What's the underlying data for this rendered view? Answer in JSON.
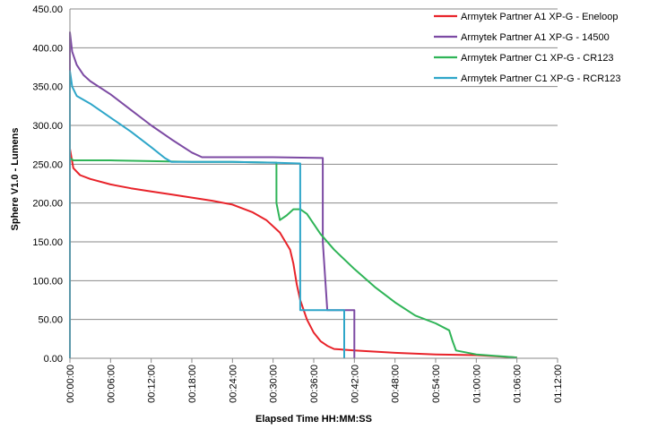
{
  "chart_data": {
    "type": "line",
    "title": "",
    "xlabel": "Elapsed Time HH:MM:SS",
    "ylabel": "Sphere V1.0 - Lumens",
    "xlim": [
      "00:00:00",
      "01:12:00"
    ],
    "ylim": [
      0,
      450
    ],
    "x_ticks": [
      "00:00:00",
      "00:06:00",
      "00:12:00",
      "00:18:00",
      "00:24:00",
      "00:30:00",
      "00:36:00",
      "00:42:00",
      "00:48:00",
      "00:54:00",
      "01:00:00",
      "01:06:00",
      "01:12:00"
    ],
    "y_ticks": [
      "0.00",
      "50.00",
      "100.00",
      "150.00",
      "200.00",
      "250.00",
      "300.00",
      "350.00",
      "400.00",
      "450.00"
    ],
    "grid": "horizontal",
    "legend_position": "top-right",
    "series": [
      {
        "name": "Armytek Partner A1 XP-G - Eneloop",
        "color": "#e8232a",
        "points": [
          [
            "00:00:00",
            0
          ],
          [
            "00:00:00",
            270
          ],
          [
            "00:00:30",
            245
          ],
          [
            "00:01:30",
            236
          ],
          [
            "00:03:00",
            231
          ],
          [
            "00:06:00",
            224
          ],
          [
            "00:09:00",
            219
          ],
          [
            "00:12:00",
            215
          ],
          [
            "00:15:00",
            211
          ],
          [
            "00:18:00",
            207
          ],
          [
            "00:21:00",
            203
          ],
          [
            "00:24:00",
            198
          ],
          [
            "00:27:00",
            188
          ],
          [
            "00:29:00",
            178
          ],
          [
            "00:31:00",
            162
          ],
          [
            "00:32:30",
            140
          ],
          [
            "00:33:00",
            122
          ],
          [
            "00:33:30",
            95
          ],
          [
            "00:34:00",
            75
          ],
          [
            "00:35:00",
            50
          ],
          [
            "00:36:00",
            33
          ],
          [
            "00:37:00",
            22
          ],
          [
            "00:38:00",
            16
          ],
          [
            "00:39:00",
            12
          ],
          [
            "00:42:00",
            10
          ],
          [
            "00:48:00",
            7
          ],
          [
            "00:54:00",
            5
          ],
          [
            "01:00:00",
            4
          ],
          [
            "01:06:00",
            1
          ]
        ]
      },
      {
        "name": "Armytek Partner A1 XP-G - 14500",
        "color": "#7c4aa3",
        "points": [
          [
            "00:00:00",
            0
          ],
          [
            "00:00:00",
            420
          ],
          [
            "00:00:20",
            395
          ],
          [
            "00:01:00",
            378
          ],
          [
            "00:02:00",
            365
          ],
          [
            "00:03:00",
            357
          ],
          [
            "00:06:00",
            340
          ],
          [
            "00:09:00",
            320
          ],
          [
            "00:12:00",
            300
          ],
          [
            "00:15:00",
            282
          ],
          [
            "00:18:00",
            265
          ],
          [
            "00:19:30",
            259
          ],
          [
            "00:30:00",
            259
          ],
          [
            "00:37:20",
            258
          ],
          [
            "00:37:20",
            150
          ],
          [
            "00:38:00",
            62
          ],
          [
            "00:42:00",
            62
          ],
          [
            "00:42:00",
            0
          ]
        ]
      },
      {
        "name": "Armytek Partner C1 XP-G - CR123",
        "color": "#2fb457",
        "points": [
          [
            "00:00:00",
            0
          ],
          [
            "00:00:00",
            258
          ],
          [
            "00:00:30",
            255
          ],
          [
            "00:06:00",
            255
          ],
          [
            "00:12:00",
            254
          ],
          [
            "00:18:00",
            253
          ],
          [
            "00:24:00",
            253
          ],
          [
            "00:30:30",
            252
          ],
          [
            "00:30:30",
            200
          ],
          [
            "00:31:00",
            178
          ],
          [
            "00:32:00",
            184
          ],
          [
            "00:33:00",
            192
          ],
          [
            "00:34:00",
            192
          ],
          [
            "00:35:00",
            186
          ],
          [
            "00:36:00",
            173
          ],
          [
            "00:37:00",
            160
          ],
          [
            "00:39:00",
            140
          ],
          [
            "00:42:00",
            115
          ],
          [
            "00:45:00",
            92
          ],
          [
            "00:48:00",
            72
          ],
          [
            "00:51:00",
            55
          ],
          [
            "00:54:00",
            45
          ],
          [
            "00:56:00",
            36
          ],
          [
            "00:56:30",
            22
          ],
          [
            "00:57:00",
            10
          ],
          [
            "01:00:00",
            5
          ],
          [
            "01:06:00",
            1
          ]
        ]
      },
      {
        "name": "Armytek Partner C1 XP-G - RCR123",
        "color": "#2ea6c9",
        "points": [
          [
            "00:00:00",
            0
          ],
          [
            "00:00:00",
            370
          ],
          [
            "00:00:20",
            350
          ],
          [
            "00:01:00",
            338
          ],
          [
            "00:03:00",
            328
          ],
          [
            "00:06:00",
            310
          ],
          [
            "00:09:00",
            292
          ],
          [
            "00:12:00",
            272
          ],
          [
            "00:14:00",
            258
          ],
          [
            "00:15:00",
            253
          ],
          [
            "00:24:00",
            253
          ],
          [
            "00:30:00",
            252
          ],
          [
            "00:34:00",
            251
          ],
          [
            "00:34:00",
            62
          ],
          [
            "00:40:30",
            62
          ],
          [
            "00:40:30",
            0
          ]
        ]
      }
    ]
  }
}
